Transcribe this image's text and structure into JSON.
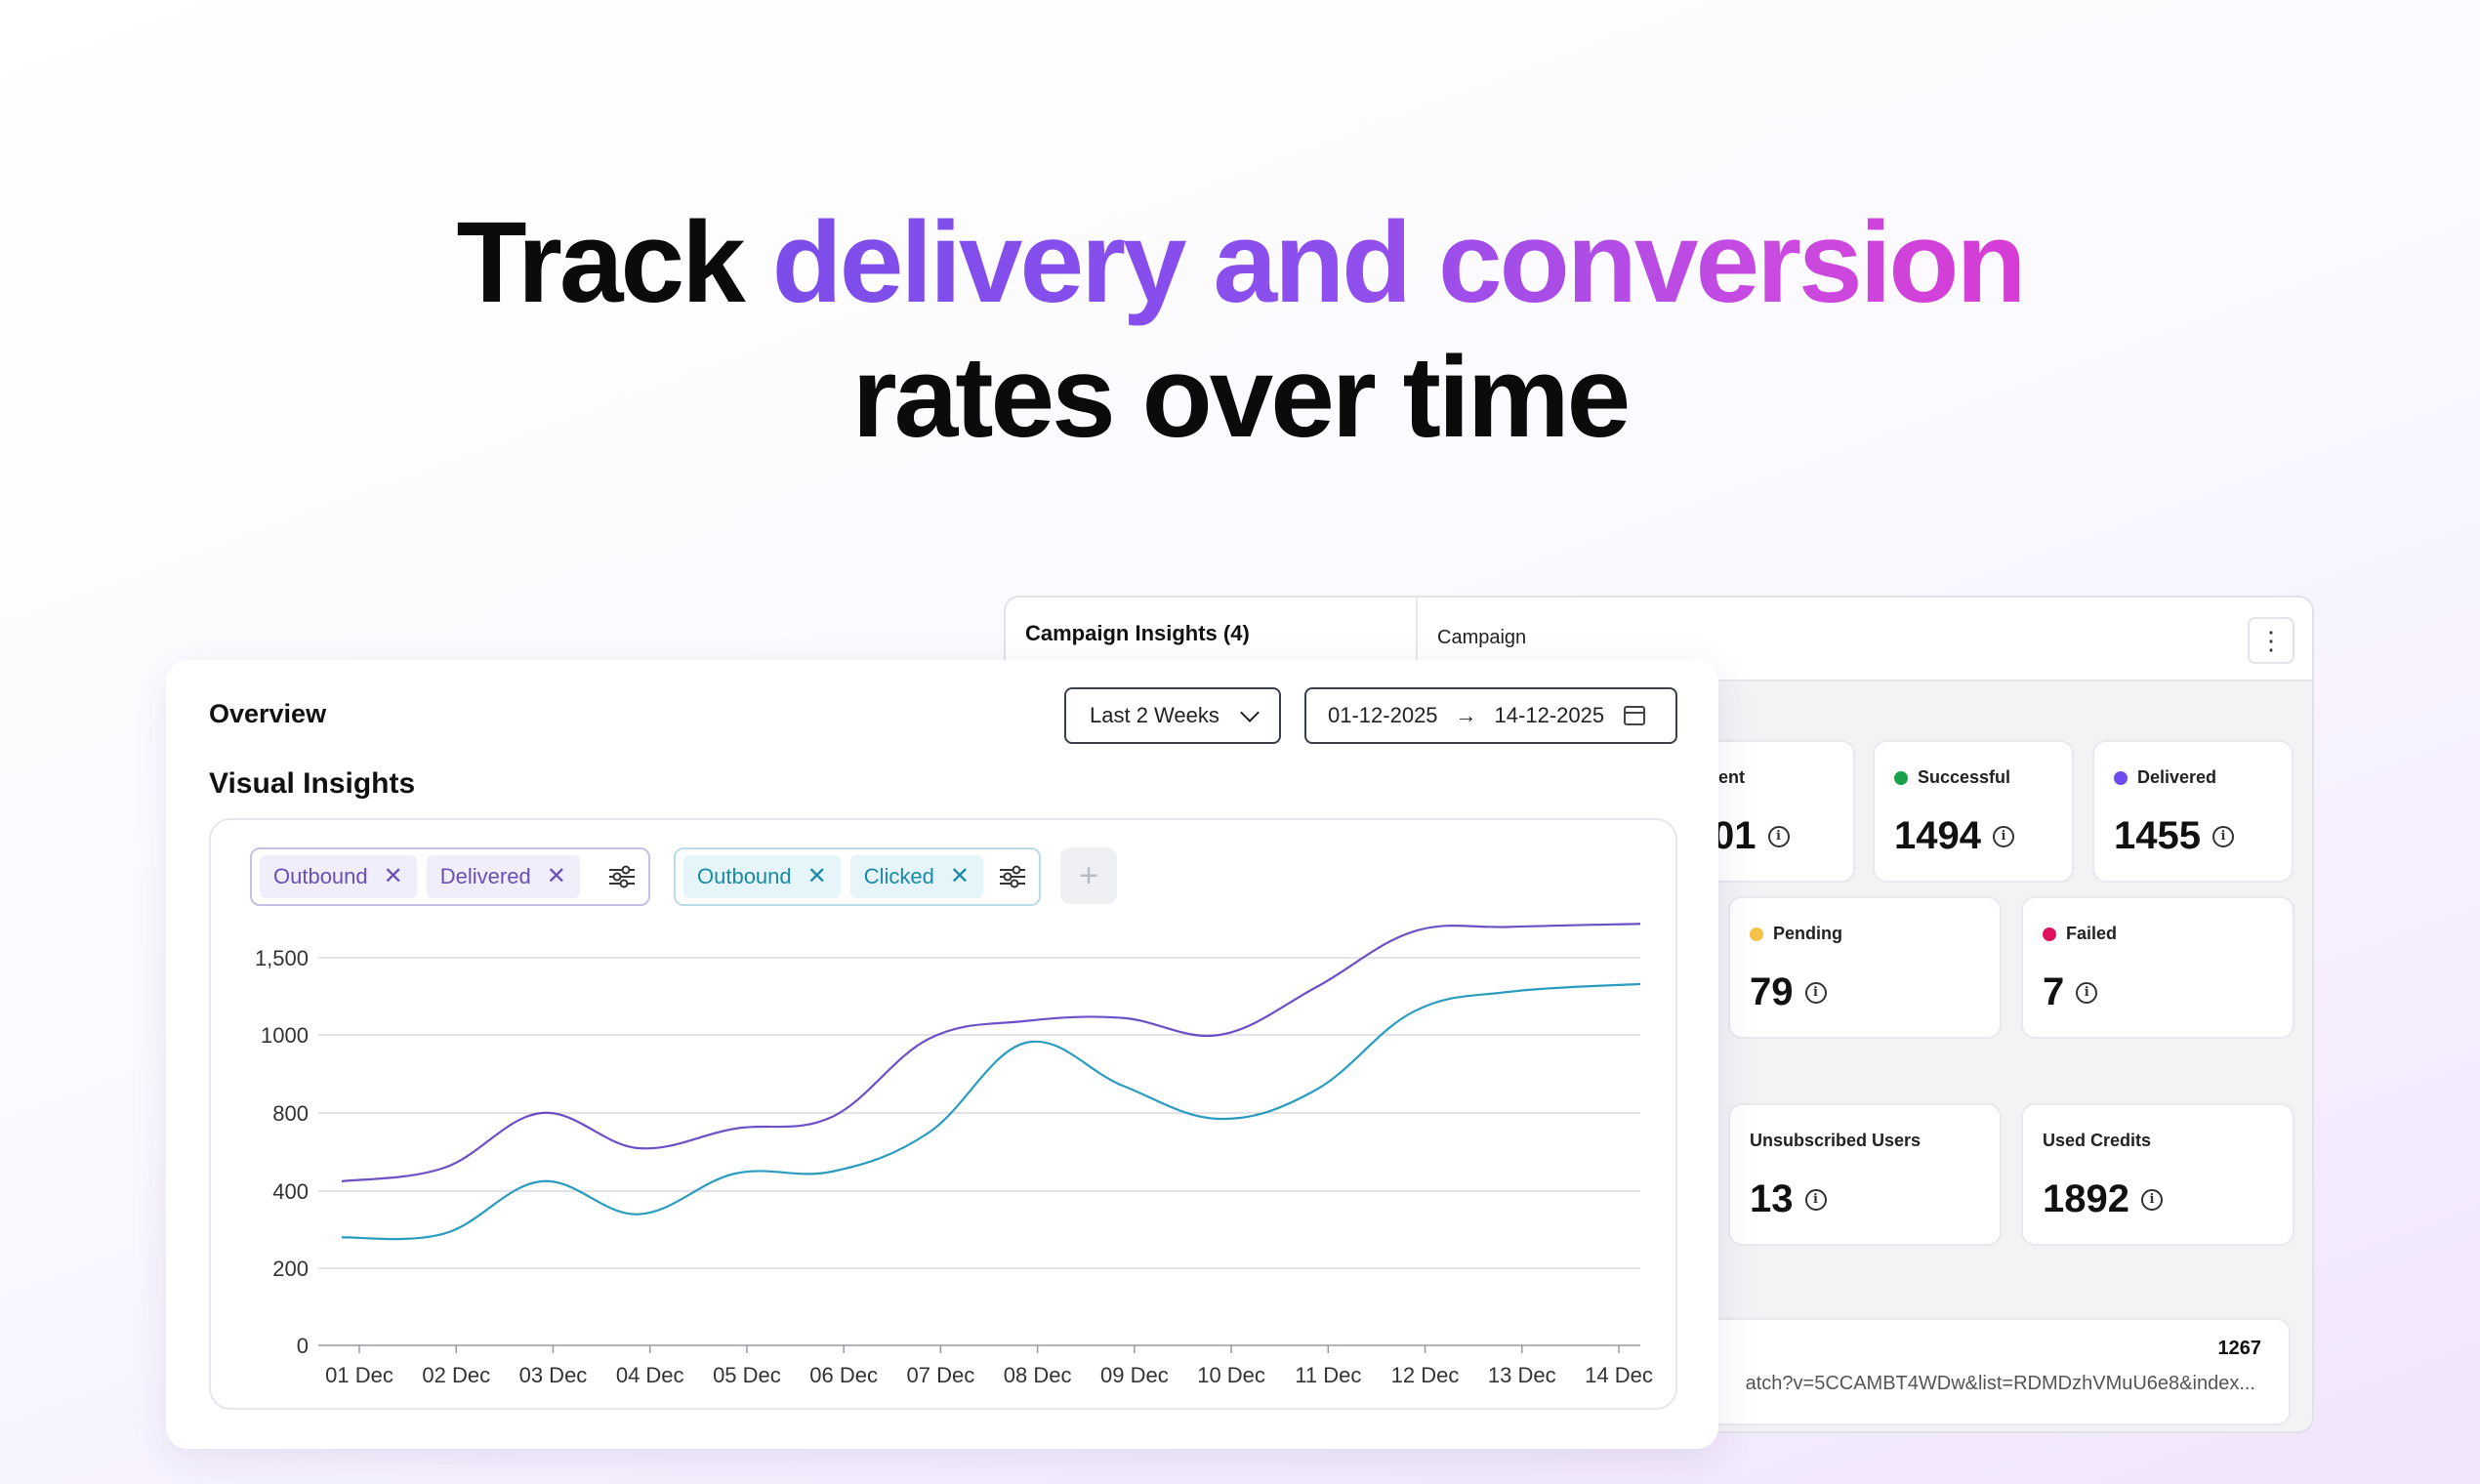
{
  "headline": {
    "plain_1": "Track",
    "gradient": "delivery and conversion",
    "plain_2": "rates over time"
  },
  "campaign_panel": {
    "title": "Campaign Insights (4)",
    "subtitle": "Campaign",
    "menu_icon": "kebab-vertical-icon",
    "stats": [
      {
        "key": "sent",
        "label": "ent",
        "value": "01",
        "dot_color": null
      },
      {
        "key": "successful",
        "label": "Successful",
        "value": "1494",
        "dot_color": "#18a24a"
      },
      {
        "key": "delivered",
        "label": "Delivered",
        "value": "1455",
        "dot_color": "#6d4cf0"
      },
      {
        "key": "pending",
        "label": "Pending",
        "value": "79",
        "dot_color": "#f5c24b"
      },
      {
        "key": "failed",
        "label": "Failed",
        "value": "7",
        "dot_color": "#e0115f"
      },
      {
        "key": "unsubscribed",
        "label": "Unsubscribed Users",
        "value": "13",
        "dot_color": null
      },
      {
        "key": "used_credits",
        "label": "Used Credits",
        "value": "1892",
        "dot_color": null
      }
    ],
    "link": {
      "count": "1267",
      "url": "atch?v=5CCAMBT4WDw&list=RDMDzhVMuU6e8&index..."
    }
  },
  "overview": {
    "title": "Overview",
    "range_select": "Last 2 Weeks",
    "date_from": "01-12-2025",
    "arrow": "→",
    "date_to": "14-12-2025",
    "section_title": "Visual Insights",
    "filters": [
      {
        "group": "purple",
        "chips": [
          "Outbound",
          "Delivered"
        ]
      },
      {
        "group": "teal",
        "chips": [
          "Outbound",
          "Clicked"
        ]
      }
    ],
    "add_filter": "+"
  },
  "chart_data": {
    "type": "line",
    "categories": [
      "01 Dec",
      "02 Dec",
      "03 Dec",
      "04 Dec",
      "05 Dec",
      "06 Dec",
      "07 Dec",
      "08 Dec",
      "09 Dec",
      "10 Dec",
      "11 Dec",
      "12 Dec",
      "13 Dec",
      "14 Dec"
    ],
    "y_ticks": [
      0,
      200,
      400,
      800,
      1000,
      1500
    ],
    "y_tick_labels": [
      "0",
      "200",
      "400",
      "800",
      "1000",
      "1,500"
    ],
    "grid": true,
    "series": [
      {
        "color": "#6d4fc6",
        "values": [
          450,
          520,
          800,
          620,
          720,
          780,
          990,
          1090,
          1110,
          1000,
          1310,
          1670,
          1700,
          1720
        ]
      },
      {
        "color": "#2a9cbd",
        "values": [
          280,
          290,
          450,
          340,
          490,
          500,
          700,
          980,
          870,
          770,
          860,
          1150,
          1280,
          1330
        ]
      }
    ]
  }
}
